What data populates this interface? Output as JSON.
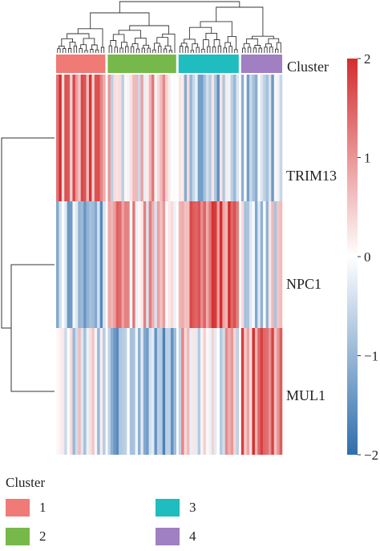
{
  "chart_data": {
    "type": "heatmap",
    "title": "",
    "rows": [
      "TRIM13",
      "NPC1",
      "MUL1"
    ],
    "annotation_label": "Cluster",
    "clusters": [
      {
        "name": "1",
        "color": "#f07a75",
        "columns": 18
      },
      {
        "name": "2",
        "color": "#77b84a",
        "columns": 25
      },
      {
        "name": "3",
        "color": "#1fbcc0",
        "columns": 22
      },
      {
        "name": "4",
        "color": "#a07fc2",
        "columns": 15
      }
    ],
    "cluster_mean_values": {
      "TRIM13": [
        1.0,
        0.3,
        -0.6,
        -0.5
      ],
      "NPC1": [
        -0.8,
        0.6,
        1.1,
        -0.3
      ],
      "MUL1": [
        -0.2,
        -1.0,
        0.2,
        1.2
      ]
    },
    "color_scale": {
      "min": -2,
      "max": 2,
      "ticks": [
        "2",
        "1",
        "0",
        "−1",
        "−2"
      ],
      "low_color": "#2f6ead",
      "mid_color": "#ffffff",
      "high_color": "#d42d2e"
    },
    "legend": {
      "title": "Cluster",
      "items": [
        {
          "label": "1",
          "color": "#f07a75"
        },
        {
          "label": "2",
          "color": "#77b84a"
        },
        {
          "label": "3",
          "color": "#1fbcc0"
        },
        {
          "label": "4",
          "color": "#a07fc2"
        }
      ]
    }
  }
}
